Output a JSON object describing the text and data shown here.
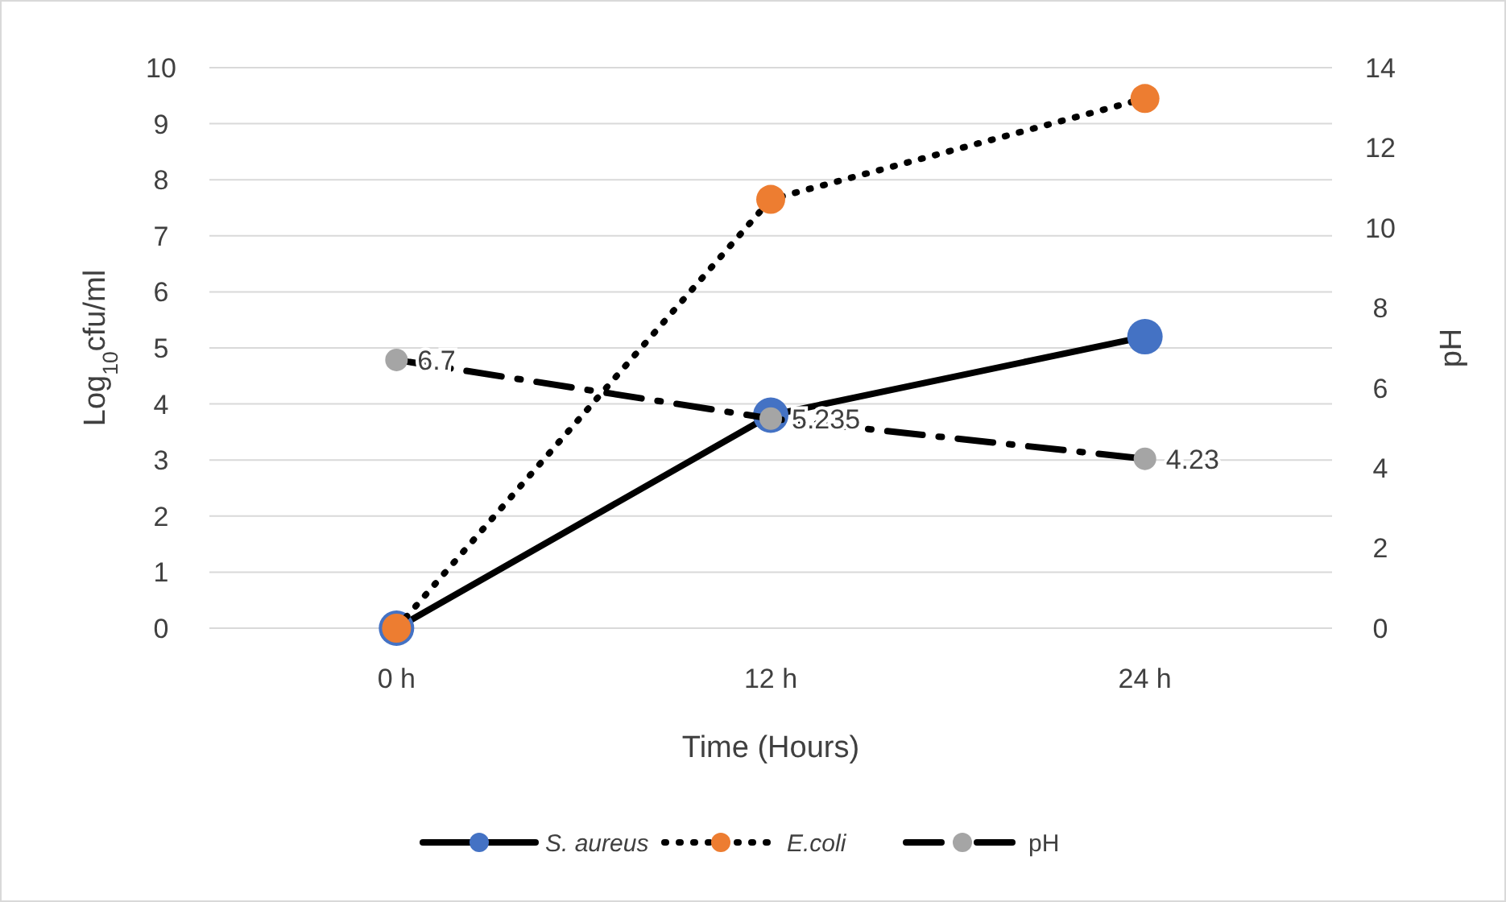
{
  "chart_data": {
    "type": "line",
    "xlabel": "Time (Hours)",
    "ylabel": "Log$_{10}$cfu/ml",
    "y2label": "pH",
    "categories": [
      "0 h",
      "12 h",
      "24 h"
    ],
    "ylim": [
      0,
      10
    ],
    "yticks": [
      0,
      1,
      2,
      3,
      4,
      5,
      6,
      7,
      8,
      9,
      10
    ],
    "y2lim": [
      0,
      14
    ],
    "y2ticks": [
      0,
      2,
      4,
      6,
      8,
      10,
      12,
      14
    ],
    "grid": "y",
    "legend": "bottom",
    "marker": "circle",
    "series": [
      {
        "name": "S. aureus",
        "color": "#4472c4",
        "values": [
          0,
          3.8,
          5.2
        ],
        "line_style": "solid"
      },
      {
        "name": "E.coli",
        "color": "#ed7d31",
        "values": [
          0,
          7.65,
          9.45
        ],
        "line_style": "dotted"
      },
      {
        "name": "pH",
        "color": "#a5a5a5",
        "values": [
          6.7,
          5.235,
          4.23
        ],
        "axis": "y2",
        "line_style": "dashed",
        "value_labels": [
          "6.7",
          "5.235",
          "4.23"
        ]
      }
    ]
  }
}
